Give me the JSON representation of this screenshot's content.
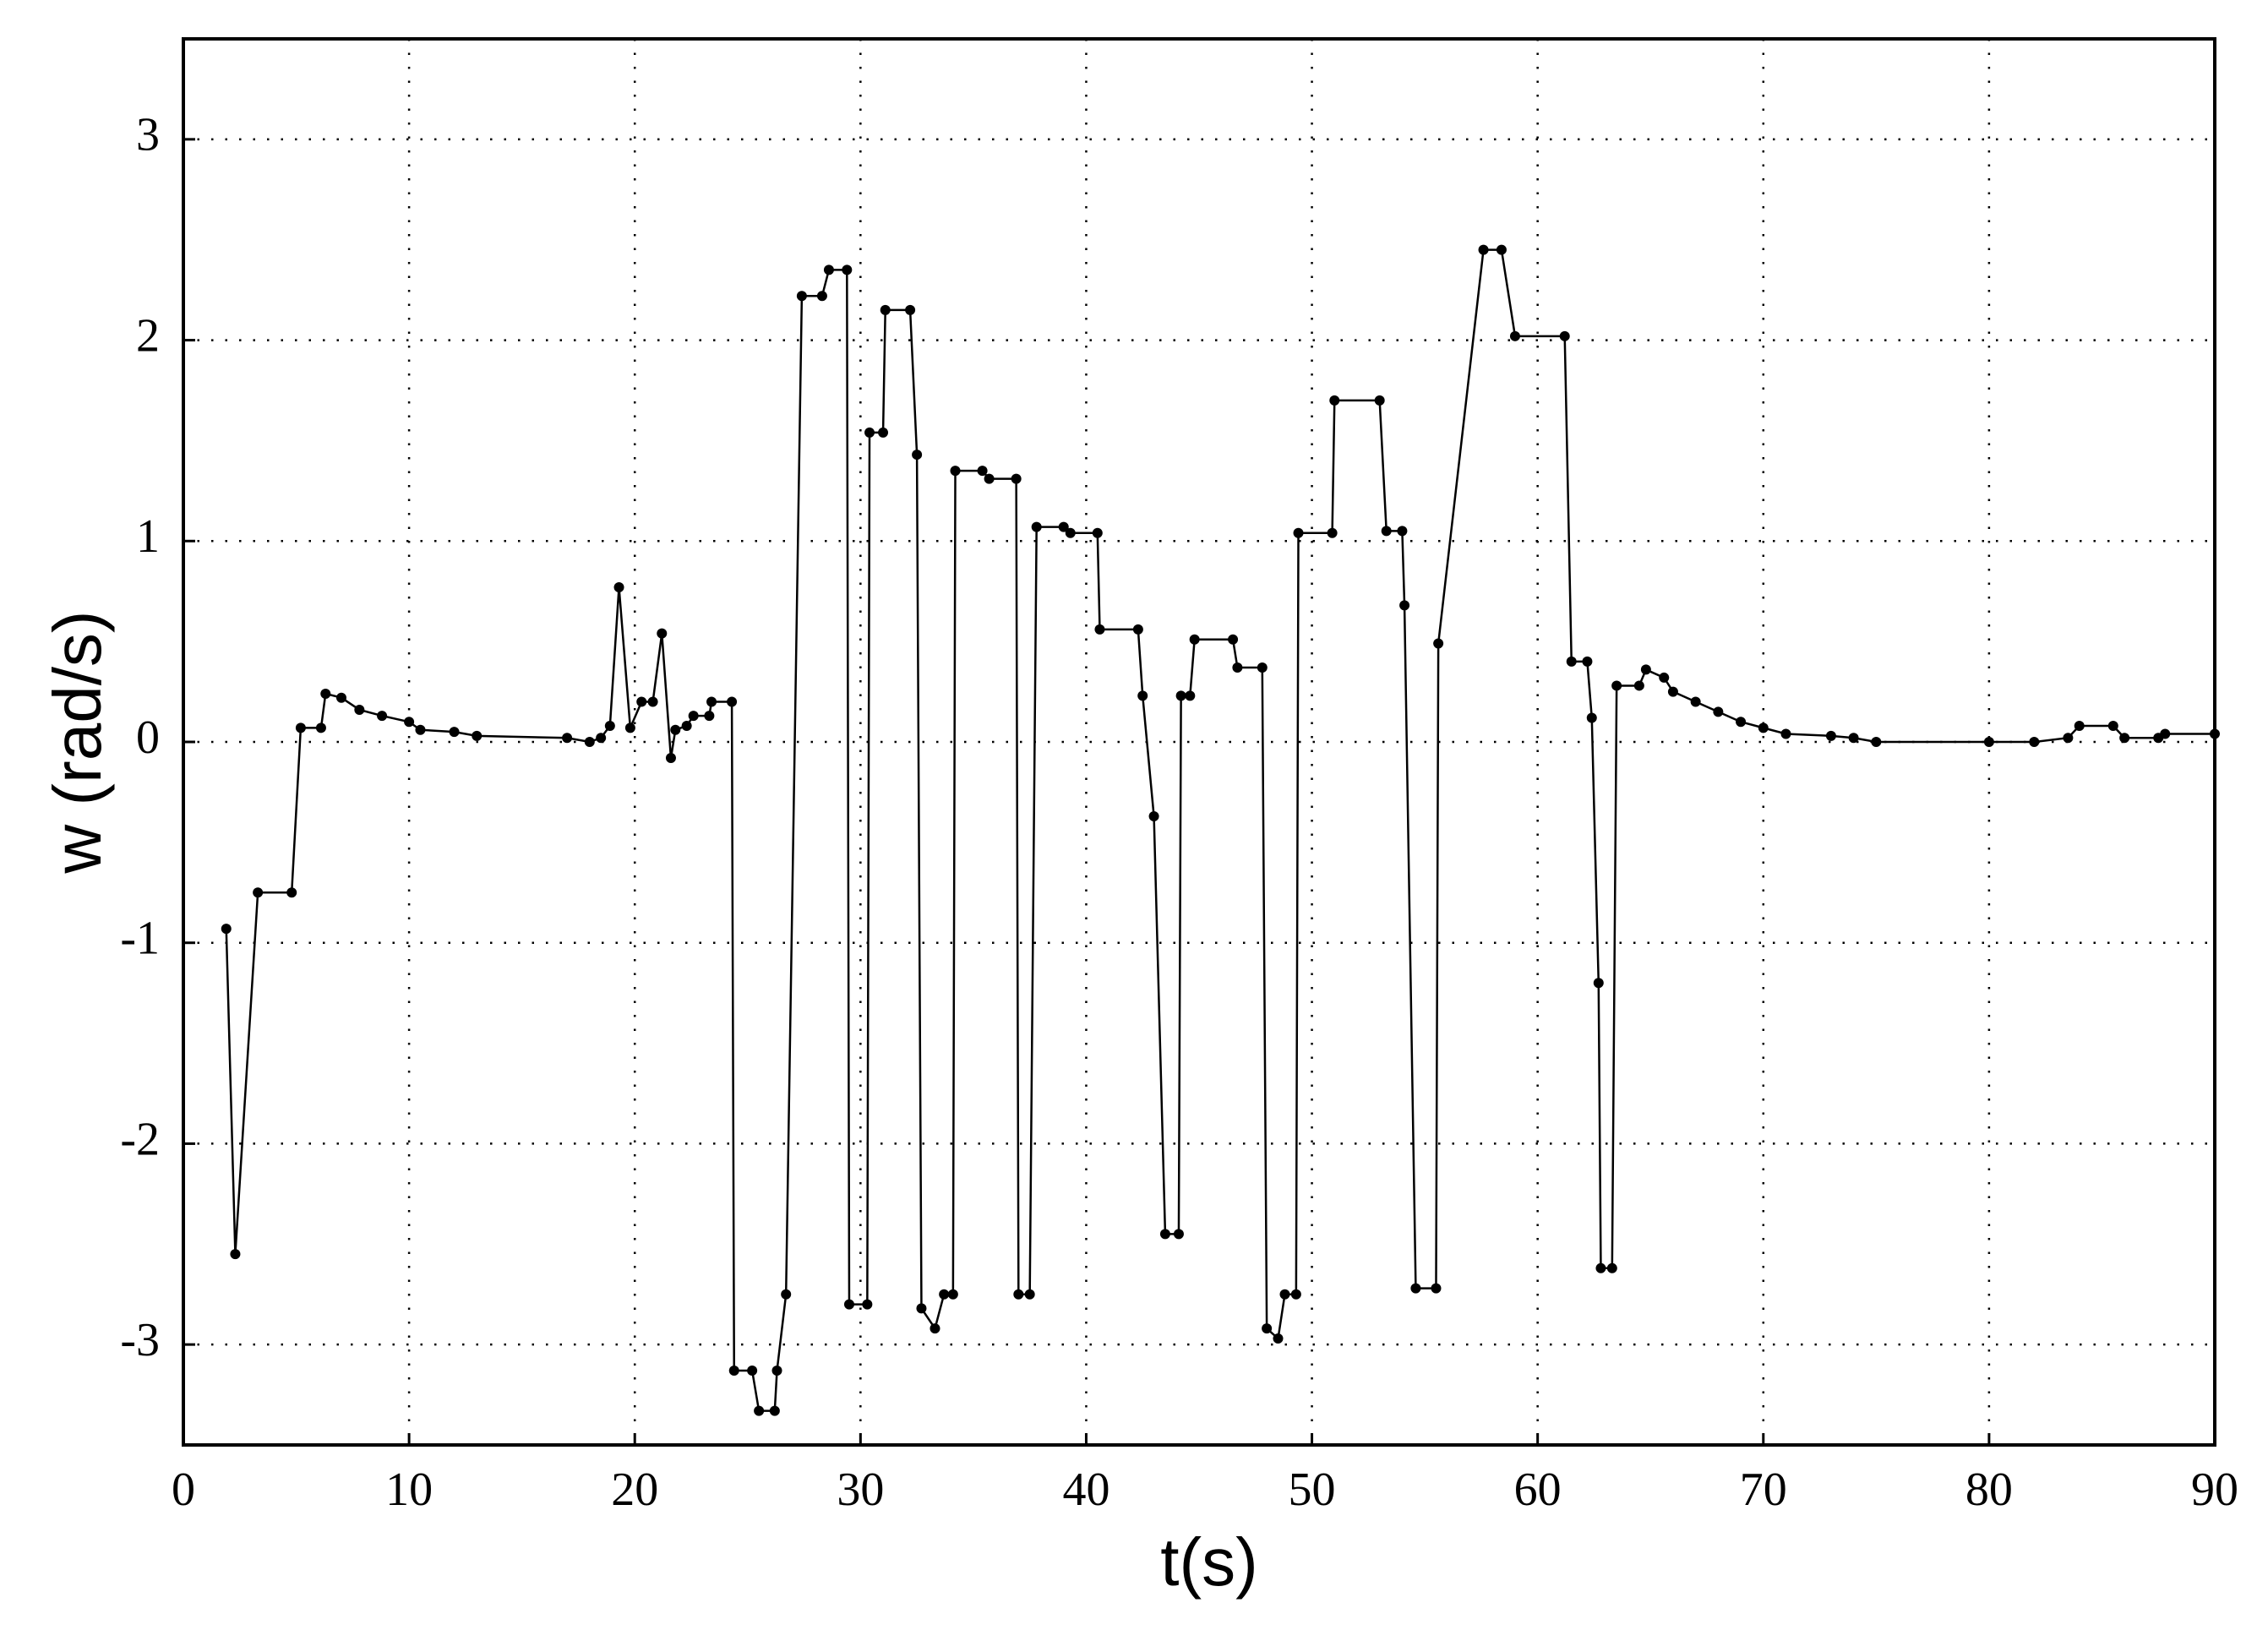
{
  "chart_data": {
    "type": "line",
    "xlabel": "t(s)",
    "ylabel": "w (rad/s)",
    "xlim": [
      0,
      90
    ],
    "ylim": [
      -3.5,
      3.5
    ],
    "xticks": [
      0,
      10,
      20,
      30,
      40,
      50,
      60,
      70,
      80,
      90
    ],
    "yticks": [
      -3,
      -2,
      -1,
      0,
      1,
      2,
      3
    ],
    "grid": true,
    "series": [
      {
        "color": "#000000",
        "x": [
          1.9,
          2.3,
          3.3,
          4.8,
          5.2,
          6.1,
          6.3,
          7.0,
          7.8,
          8.8,
          10,
          10.5,
          12,
          13,
          17,
          18,
          18.5,
          18.9,
          19.3,
          19.8,
          20.3,
          20.8,
          21.2,
          21.6,
          21.8,
          22.3,
          22.6,
          23.3,
          23.4,
          24.3,
          24.4,
          25.2,
          25.5,
          26.2,
          26.3,
          26.7,
          27.4,
          28.3,
          28.6,
          29.4,
          29.5,
          30.3,
          30.4,
          31.0,
          31.1,
          32.2,
          32.5,
          32.7,
          33.3,
          33.7,
          34.1,
          34.2,
          35.4,
          35.7,
          36.9,
          37.0,
          37.5,
          37.8,
          39.0,
          39.3,
          40.5,
          40.6,
          42.3,
          42.5,
          43.0,
          43.5,
          44.1,
          44.2,
          44.6,
          44.8,
          46.5,
          46.7,
          47.8,
          48.0,
          48.5,
          48.8,
          49.3,
          49.4,
          50.9,
          51.0,
          53.0,
          53.3,
          54.0,
          54.1,
          54.6,
          55.5,
          55.6,
          57.6,
          58.4,
          59.0,
          61.2,
          61.5,
          62.2,
          62.4,
          62.7,
          62.8,
          63.3,
          63.5,
          64.5,
          64.8,
          65.6,
          66.0,
          67.0,
          68.0,
          69.0,
          70.0,
          71.0,
          73,
          74,
          75,
          80,
          82,
          83.5,
          84,
          85.5,
          86,
          87.5,
          87.8,
          90
        ],
        "values": [
          -0.93,
          -2.55,
          -0.75,
          -0.75,
          0.07,
          0.07,
          0.24,
          0.22,
          0.16,
          0.13,
          0.1,
          0.06,
          0.05,
          0.03,
          0.02,
          0.0,
          0.02,
          0.08,
          0.77,
          0.07,
          0.2,
          0.2,
          0.54,
          -0.08,
          0.06,
          0.08,
          0.13,
          0.13,
          0.2,
          0.2,
          -3.13,
          -3.13,
          -3.33,
          -3.33,
          -3.13,
          -2.75,
          2.22,
          2.22,
          2.35,
          2.35,
          -2.8,
          -2.8,
          1.54,
          1.54,
          2.15,
          2.15,
          1.43,
          -2.82,
          -2.92,
          -2.75,
          -2.75,
          1.35,
          1.35,
          1.31,
          1.31,
          -2.75,
          -2.75,
          1.07,
          1.07,
          1.04,
          1.04,
          0.56,
          0.56,
          0.23,
          -0.37,
          -2.45,
          -2.45,
          0.23,
          0.23,
          0.51,
          0.51,
          0.37,
          0.37,
          -2.92,
          -2.97,
          -2.75,
          -2.75,
          1.04,
          1.04,
          1.7,
          1.7,
          1.05,
          1.05,
          0.68,
          -2.72,
          -2.72,
          0.49,
          2.45,
          2.45,
          2.02,
          2.02,
          0.4,
          0.4,
          0.12,
          -1.2,
          -2.62,
          -2.62,
          0.28,
          0.28,
          0.36,
          0.32,
          0.25,
          0.2,
          0.15,
          0.1,
          0.07,
          0.04,
          0.03,
          0.02,
          0.0,
          0.0,
          0.0,
          0.02,
          0.08,
          0.08,
          0.02,
          0.02,
          0.04,
          0.04
        ]
      }
    ]
  }
}
